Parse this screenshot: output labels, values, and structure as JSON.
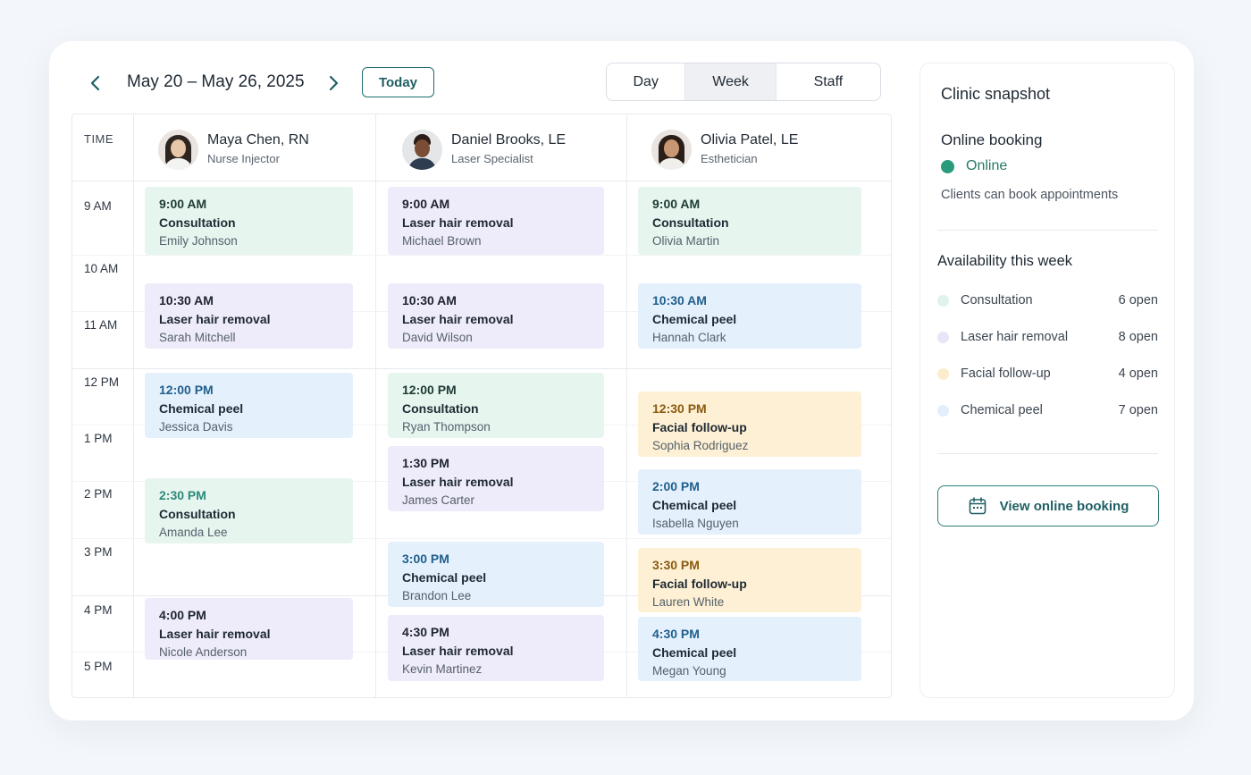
{
  "toolbar": {
    "prev_icon": "chevron-left-icon",
    "next_icon": "chevron-right-icon",
    "date_range": "May 20 – May 26, 2025",
    "today_label": "Today",
    "views": [
      {
        "label": "Day",
        "active": false
      },
      {
        "label": "Week",
        "active": true
      },
      {
        "label": "Staff",
        "active": false
      }
    ]
  },
  "calendar": {
    "time_header": "TIME",
    "time_labels": [
      "9 AM",
      "10 AM",
      "11 AM",
      "12 PM",
      "1 PM",
      "2 PM",
      "3 PM",
      "4 PM",
      "5 PM"
    ],
    "staff": [
      {
        "name": "Maya Chen, RN",
        "role": "Nurse Injector",
        "appointments": [
          {
            "time": "9:00 AM",
            "service": "Consultation",
            "client": "Emily Johnson",
            "color": "green"
          },
          {
            "time": "10:30 AM",
            "service": "Laser hair removal",
            "client": "Sarah Mitchell",
            "color": "purple"
          },
          {
            "time": "12:00 PM",
            "service": "Chemical peel",
            "client": "Jessica Davis",
            "color": "blue"
          },
          {
            "time": "2:30 PM",
            "service": "Consultation",
            "client": "Amanda Lee",
            "color": "green"
          },
          {
            "time": "4:00 PM",
            "service": "Laser hair removal",
            "client": "Nicole Anderson",
            "color": "purple"
          }
        ]
      },
      {
        "name": "Daniel Brooks, LE",
        "role": "Laser Specialist",
        "appointments": [
          {
            "time": "9:00 AM",
            "service": "Laser hair removal",
            "client": "Michael Brown",
            "color": "purple"
          },
          {
            "time": "10:30 AM",
            "service": "Laser hair removal",
            "client": "David Wilson",
            "color": "purple"
          },
          {
            "time": "12:00 PM",
            "service": "Consultation",
            "client": "Ryan Thompson",
            "color": "green"
          },
          {
            "time": "1:30 PM",
            "service": "Laser hair removal",
            "client": "James Carter",
            "color": "purple"
          },
          {
            "time": "3:00 PM",
            "service": "Chemical peel",
            "client": "Brandon Lee",
            "color": "blue"
          },
          {
            "time": "4:30 PM",
            "service": "Laser hair removal",
            "client": "Kevin Martinez",
            "color": "purple"
          }
        ]
      },
      {
        "name": "Olivia Patel, LE",
        "role": "Esthetician",
        "appointments": [
          {
            "time": "9:00 AM",
            "service": "Consultation",
            "client": "Olivia Martin",
            "color": "green"
          },
          {
            "time": "10:30 AM",
            "service": "Chemical peel",
            "client": "Hannah Clark",
            "color": "blue"
          },
          {
            "time": "12:30 PM",
            "service": "Facial follow-up",
            "client": "Sophia Rodriguez",
            "color": "yellow"
          },
          {
            "time": "2:00 PM",
            "service": "Chemical peel",
            "client": "Isabella Nguyen",
            "color": "blue"
          },
          {
            "time": "3:30 PM",
            "service": "Facial follow-up",
            "client": "Lauren White",
            "color": "yellow"
          },
          {
            "time": "4:30 PM",
            "service": "Chemical peel",
            "client": "Megan Young",
            "color": "blue"
          }
        ]
      }
    ]
  },
  "snapshot": {
    "title": "Clinic snapshot",
    "online_booking": {
      "title": "Online booking",
      "status": "Online",
      "status_color": "#2a9a7c",
      "description": "Clients can book appointments"
    },
    "availability": {
      "title": "Availability this week",
      "items": [
        {
          "name": "Consultation",
          "count": "6 open",
          "color": "#dff3ea"
        },
        {
          "name": "Laser hair removal",
          "count": "8 open",
          "color": "#e8e5f8"
        },
        {
          "name": "Facial follow-up",
          "count": "4 open",
          "color": "#fbeccb"
        },
        {
          "name": "Chemical peel",
          "count": "7 open",
          "color": "#e3eefc"
        }
      ]
    },
    "button_label": "View online booking",
    "button_icon": "calendar-icon"
  }
}
